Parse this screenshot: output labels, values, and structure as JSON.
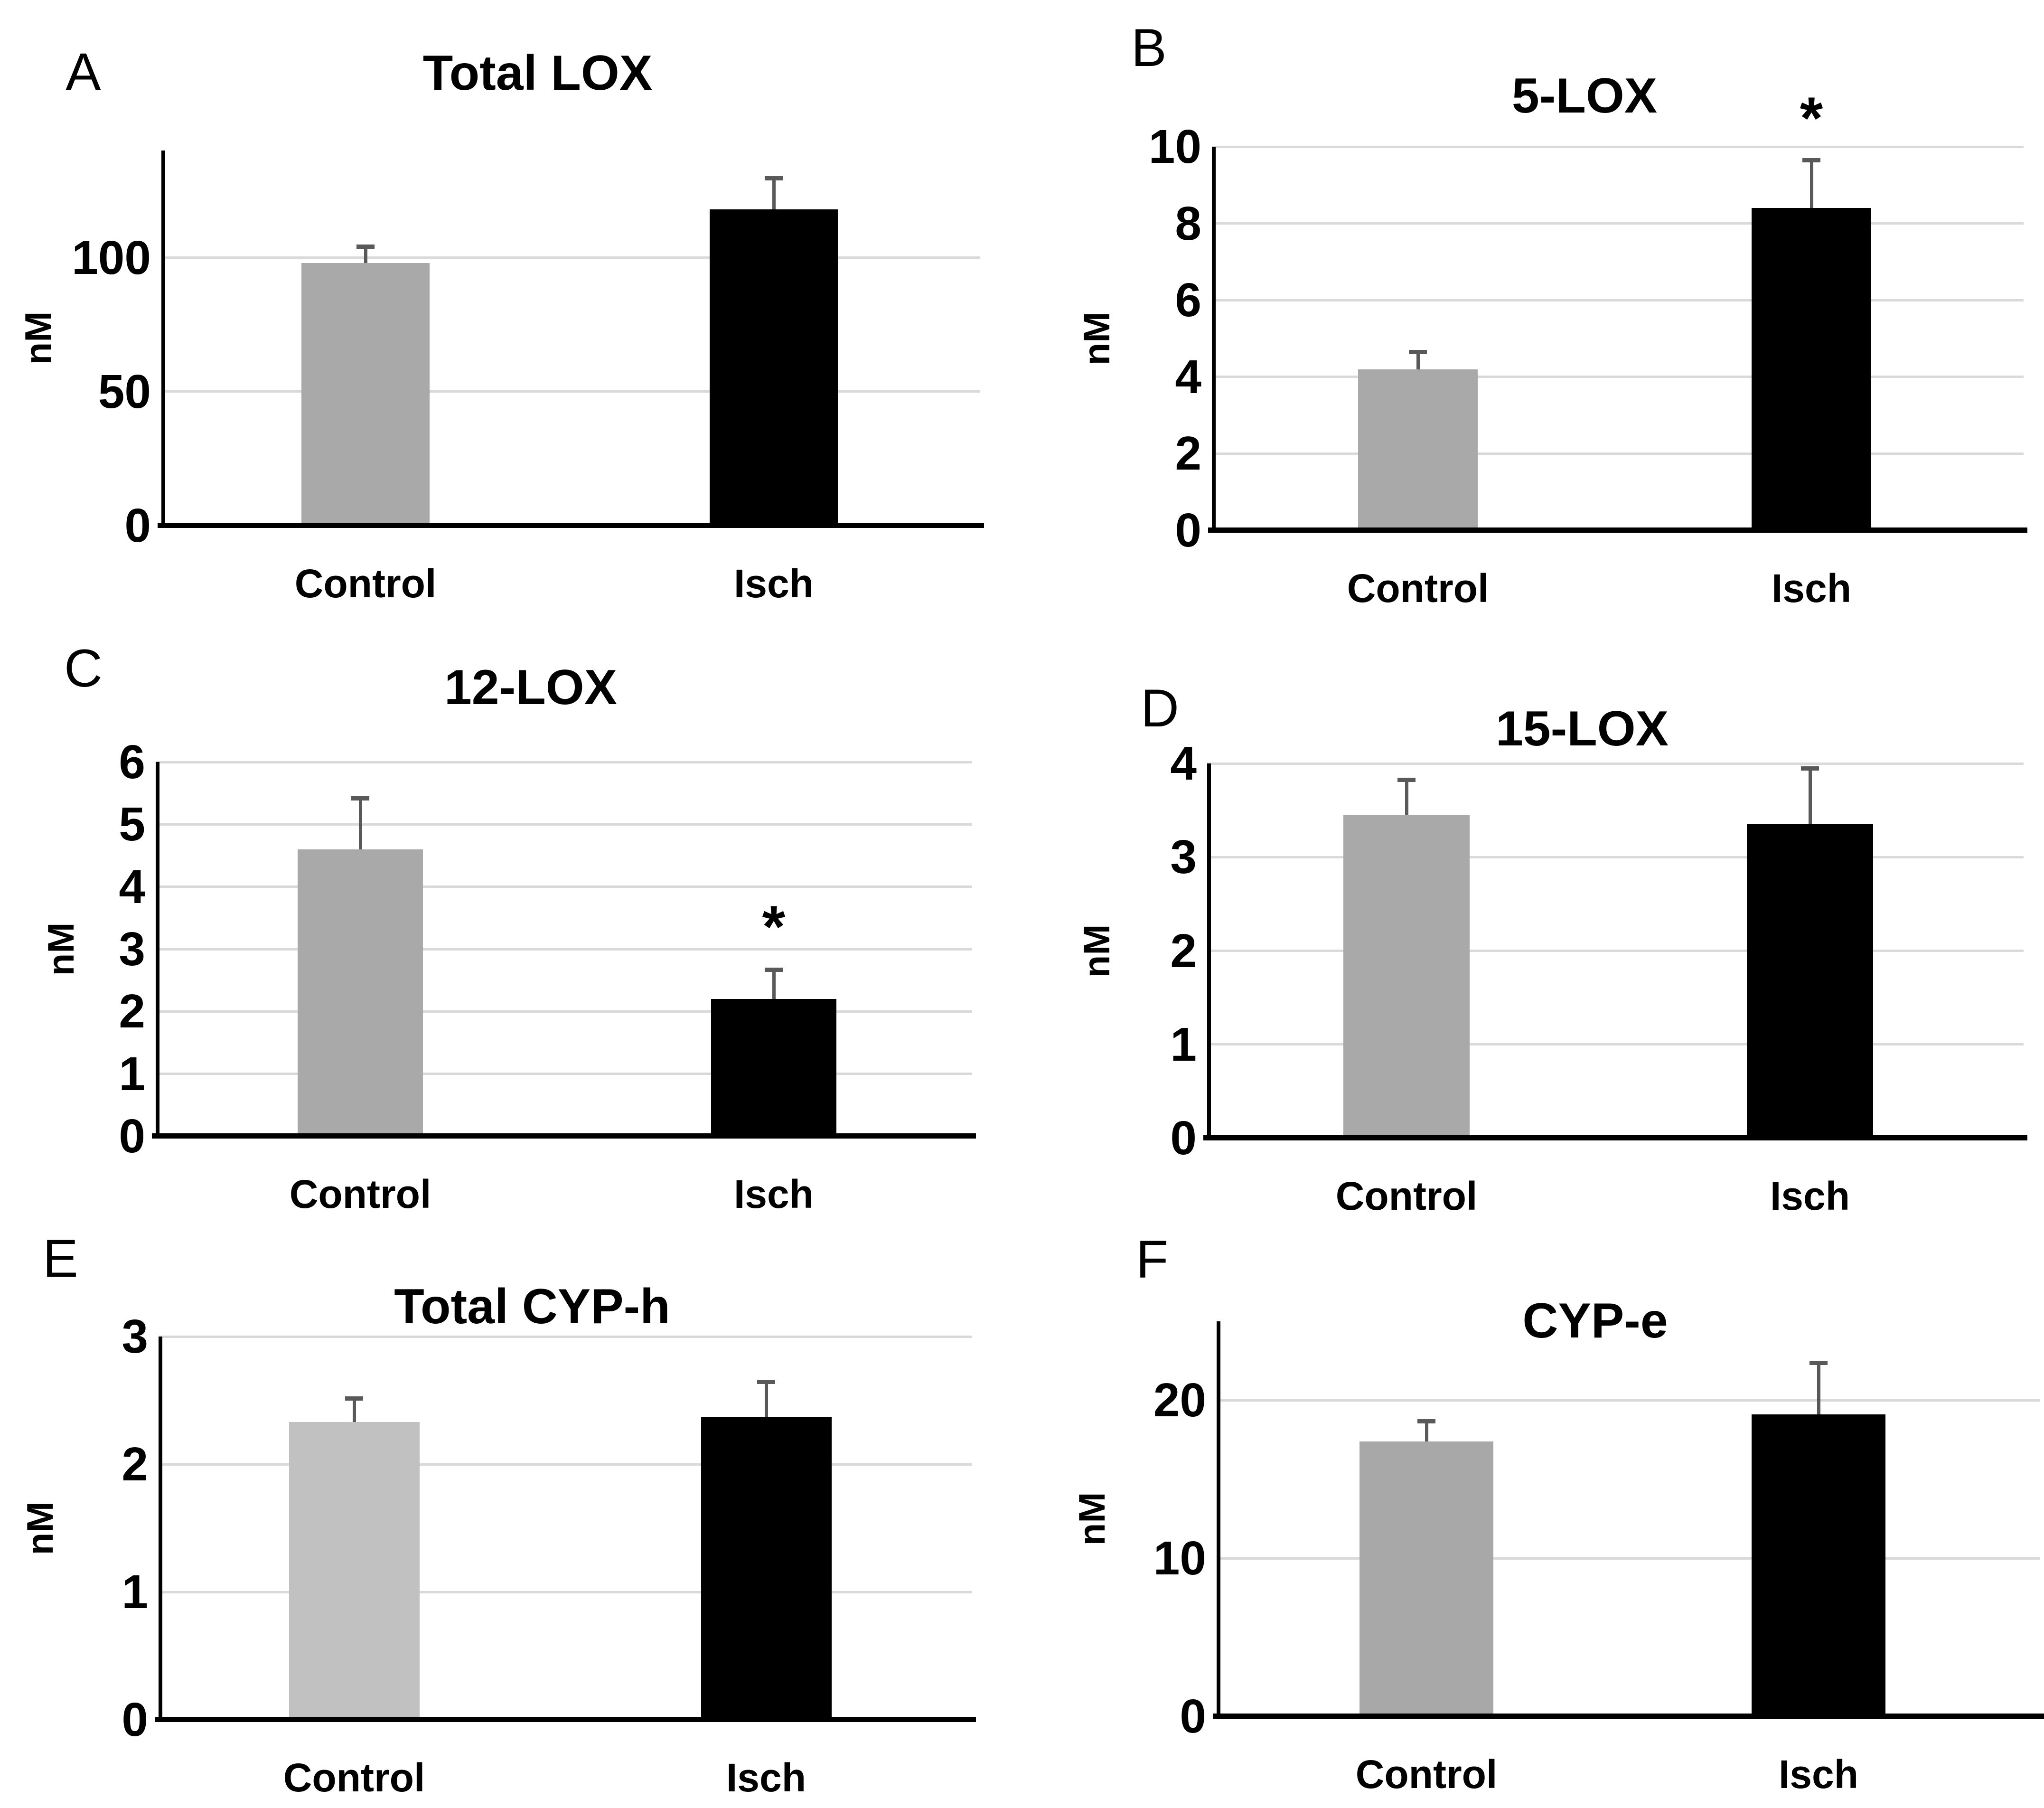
{
  "figure": {
    "description_visible_text_only": "Six-panel bar figure",
    "panel_letters": [
      "A",
      "B",
      "C",
      "D",
      "E",
      "F"
    ]
  },
  "chart_data": [
    {
      "panel_letter": "A",
      "type": "bar",
      "title": "Total LOX",
      "ylabel": "nM",
      "categories": [
        "Control",
        "Isch"
      ],
      "values": [
        98,
        118
      ],
      "errors": [
        7,
        12.5
      ],
      "bar_colors": [
        "#a9a9a9",
        "#000000"
      ],
      "error_color": "#595959",
      "yticks": [
        0,
        50,
        100
      ],
      "ylim": [
        0,
        140
      ],
      "grid": true,
      "legend": "none",
      "significance": [
        "",
        ""
      ]
    },
    {
      "panel_letter": "B",
      "type": "bar",
      "title": "5-LOX",
      "ylabel": "nM",
      "categories": [
        "Control",
        "Isch"
      ],
      "values": [
        4.2,
        8.4
      ],
      "errors": [
        0.5,
        1.3
      ],
      "bar_colors": [
        "#a9a9a9",
        "#000000"
      ],
      "error_color": "#595959",
      "yticks": [
        0,
        2,
        4,
        6,
        8,
        10
      ],
      "ylim": [
        0,
        10
      ],
      "grid": true,
      "legend": "none",
      "significance": [
        "",
        "*"
      ]
    },
    {
      "panel_letter": "C",
      "type": "bar",
      "title": "12-LOX",
      "ylabel": "nM",
      "categories": [
        "Control",
        "Isch"
      ],
      "values": [
        4.6,
        2.2
      ],
      "errors": [
        0.85,
        0.5
      ],
      "bar_colors": [
        "#a9a9a9",
        "#000000"
      ],
      "error_color": "#595959",
      "yticks": [
        0,
        1,
        2,
        3,
        4,
        5,
        6
      ],
      "ylim": [
        0,
        6
      ],
      "grid": true,
      "legend": "none",
      "significance": [
        "",
        "*"
      ]
    },
    {
      "panel_letter": "D",
      "type": "bar",
      "title": "15-LOX",
      "ylabel": "nM",
      "categories": [
        "Control",
        "Isch"
      ],
      "values": [
        3.45,
        3.35
      ],
      "errors": [
        0.4,
        0.62
      ],
      "bar_colors": [
        "#a9a9a9",
        "#000000"
      ],
      "error_color": "#595959",
      "yticks": [
        0,
        1,
        2,
        3,
        4
      ],
      "ylim": [
        0,
        4
      ],
      "grid": true,
      "legend": "none",
      "significance": [
        "",
        ""
      ]
    },
    {
      "panel_letter": "E",
      "type": "bar",
      "title": "Total CYP-h",
      "ylabel": "nM",
      "categories": [
        "Control",
        "Isch"
      ],
      "values": [
        2.33,
        2.37
      ],
      "errors": [
        0.2,
        0.29
      ],
      "bar_colors": [
        "#c1c1c1",
        "#000000"
      ],
      "error_color": "#595959",
      "yticks": [
        0,
        1,
        2,
        3
      ],
      "ylim": [
        0,
        3
      ],
      "grid": true,
      "legend": "none",
      "significance": [
        "",
        ""
      ]
    },
    {
      "panel_letter": "F",
      "type": "bar",
      "title": "CYP-e",
      "ylabel": "nM",
      "categories": [
        "Control",
        "Isch"
      ],
      "values": [
        17.4,
        19.1
      ],
      "errors": [
        1.4,
        3.4
      ],
      "bar_colors": [
        "#a8a8a8",
        "#000000"
      ],
      "error_color": "#595959",
      "yticks": [
        0,
        10,
        20
      ],
      "ylim": [
        0,
        25
      ],
      "grid": true,
      "legend": "none",
      "significance": [
        "",
        ""
      ]
    }
  ]
}
